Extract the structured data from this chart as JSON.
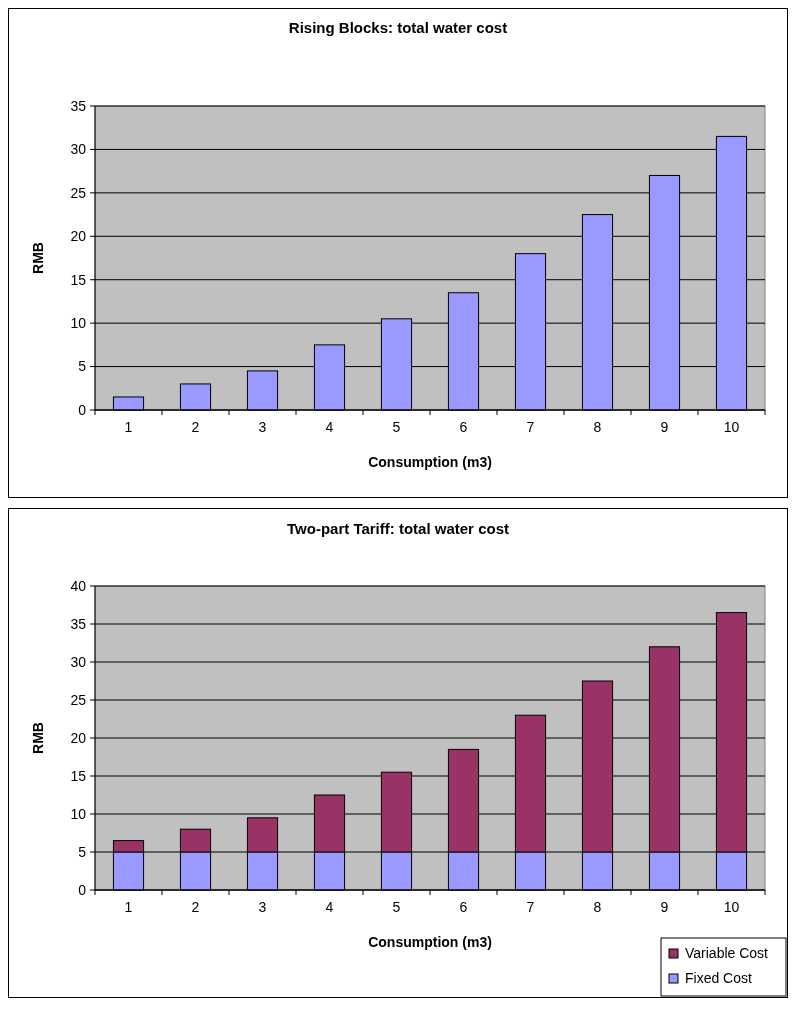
{
  "chart_data": [
    {
      "type": "bar",
      "title": "Rising Blocks: total water cost",
      "xlabel": "Consumption (m3)",
      "ylabel": "RMB",
      "categories": [
        "1",
        "2",
        "3",
        "4",
        "5",
        "6",
        "7",
        "8",
        "9",
        "10"
      ],
      "series": [
        {
          "color": "#9999ff",
          "values": [
            1.5,
            3,
            4.5,
            7.5,
            10.5,
            13.5,
            18,
            22.5,
            27,
            31.5
          ]
        }
      ],
      "ylim": [
        0,
        35
      ],
      "yticks": [
        0,
        5,
        10,
        15,
        20,
        25,
        30,
        35
      ],
      "grid": "y"
    },
    {
      "type": "bar",
      "title": "Two-part Tariff: total water cost",
      "xlabel": "Consumption (m3)",
      "ylabel": "RMB",
      "categories": [
        "1",
        "2",
        "3",
        "4",
        "5",
        "6",
        "7",
        "8",
        "9",
        "10"
      ],
      "stacked": true,
      "series": [
        {
          "name": "Fixed Cost",
          "color": "#9999ff",
          "values": [
            5,
            5,
            5,
            5,
            5,
            5,
            5,
            5,
            5,
            5
          ]
        },
        {
          "name": "Variable Cost",
          "color": "#993366",
          "values": [
            1.5,
            3,
            4.5,
            7.5,
            10.5,
            13.5,
            18,
            22.5,
            27,
            31.5
          ]
        }
      ],
      "ylim": [
        0,
        40
      ],
      "yticks": [
        0,
        5,
        10,
        15,
        20,
        25,
        30,
        35,
        40
      ],
      "grid": "y",
      "legend": "bottom right"
    }
  ]
}
